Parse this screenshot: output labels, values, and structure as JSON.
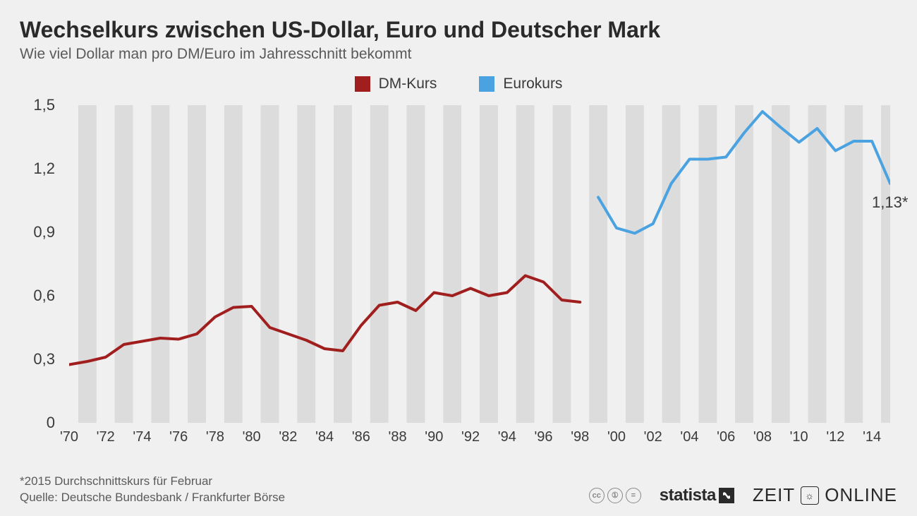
{
  "title": "Wechselkurs zwischen US-Dollar, Euro und Deutscher Mark",
  "subtitle": "Wie viel Dollar man pro DM/Euro im Jahresschnitt bekommt",
  "legend": {
    "dm": {
      "label": "DM-Kurs",
      "color": "#a01e1e"
    },
    "euro": {
      "label": "Eurokurs",
      "color": "#4aa3e0"
    }
  },
  "chart": {
    "type": "line",
    "background_color": "#f0f0f0",
    "grid_bar_color": "#dcdcdc",
    "line_width": 4,
    "ylim": [
      0,
      1.5
    ],
    "yticks": [
      0,
      0.3,
      0.6,
      0.9,
      1.2,
      1.5
    ],
    "ytick_labels": [
      "0",
      "0,3",
      "0,6",
      "0,9",
      "1,2",
      "1,5"
    ],
    "x_years": [
      1970,
      1971,
      1972,
      1973,
      1974,
      1975,
      1976,
      1977,
      1978,
      1979,
      1980,
      1981,
      1982,
      1983,
      1984,
      1985,
      1986,
      1987,
      1988,
      1989,
      1990,
      1991,
      1992,
      1993,
      1994,
      1995,
      1996,
      1997,
      1998,
      1999,
      2000,
      2001,
      2002,
      2003,
      2004,
      2005,
      2006,
      2007,
      2008,
      2009,
      2010,
      2011,
      2012,
      2013,
      2014,
      2015
    ],
    "xtick_labels": [
      "'70",
      "'72",
      "'74",
      "'76",
      "'78",
      "'80",
      "'82",
      "'84",
      "'86",
      "'88",
      "'90",
      "'92",
      "'94",
      "'96",
      "'98",
      "'00",
      "'02",
      "'04",
      "'06",
      "'08",
      "'10",
      "'12",
      "'14"
    ],
    "xtick_years": [
      1970,
      1972,
      1974,
      1976,
      1978,
      1980,
      1982,
      1984,
      1986,
      1988,
      1990,
      1992,
      1994,
      1996,
      1998,
      2000,
      2002,
      2004,
      2006,
      2008,
      2010,
      2012,
      2014
    ],
    "series_dm": {
      "start_year": 1970,
      "values": [
        0.275,
        0.29,
        0.31,
        0.37,
        0.385,
        0.4,
        0.395,
        0.42,
        0.5,
        0.545,
        0.55,
        0.45,
        0.42,
        0.39,
        0.35,
        0.34,
        0.46,
        0.555,
        0.57,
        0.53,
        0.615,
        0.6,
        0.635,
        0.6,
        0.615,
        0.695,
        0.665,
        0.58,
        0.57
      ]
    },
    "series_euro": {
      "start_year": 1999,
      "values": [
        1.065,
        0.92,
        0.895,
        0.94,
        1.13,
        1.245,
        1.245,
        1.255,
        1.37,
        1.47,
        1.395,
        1.325,
        1.39,
        1.285,
        1.33,
        1.33,
        1.13
      ]
    },
    "callout": {
      "label": "1,13*",
      "year": 2015,
      "value": 1.13
    }
  },
  "footer": {
    "note": "*2015 Durchschnittskurs für Februar",
    "source": "Quelle: Deutsche Bundesbank / Frankfurter Börse",
    "cc": [
      "cc",
      "①",
      "="
    ],
    "brand1": "statista",
    "brand2a": "ZEIT",
    "brand2b": "ONLINE"
  }
}
